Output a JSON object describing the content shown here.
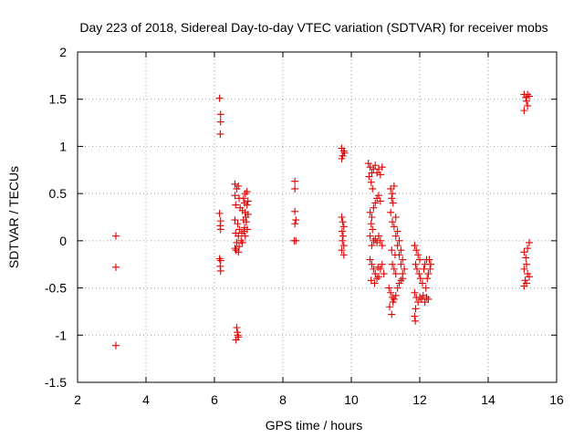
{
  "chart_data": {
    "type": "scatter",
    "title": "Day 223 of 2018, Sidereal Day-to-day VTEC variation (SDTVAR) for receiver mobs",
    "xlabel": "GPS time / hours",
    "ylabel": "SDTVAR / TECUs",
    "xlim": [
      2,
      16
    ],
    "ylim": [
      -1.5,
      2
    ],
    "xticks": [
      2,
      4,
      6,
      8,
      10,
      12,
      14,
      16
    ],
    "yticks": [
      -1.5,
      -1,
      -0.5,
      0,
      0.5,
      1,
      1.5,
      2
    ],
    "xtick_labels": [
      "2",
      "4",
      "6",
      "8",
      "10",
      "12",
      "14",
      "16"
    ],
    "ytick_labels": [
      "-1.5",
      "-1",
      "-0.5",
      "0",
      "0.5",
      "1",
      "1.5",
      "2"
    ],
    "grid": true,
    "marker": "+",
    "color": "#e00000",
    "series": [
      {
        "name": "SDTVAR",
        "points": [
          [
            3.12,
            0.05
          ],
          [
            3.12,
            -0.28
          ],
          [
            3.12,
            -1.11
          ],
          [
            6.15,
            1.51
          ],
          [
            6.18,
            1.34
          ],
          [
            6.18,
            1.26
          ],
          [
            6.17,
            1.13
          ],
          [
            6.15,
            0.29
          ],
          [
            6.18,
            0.21
          ],
          [
            6.17,
            0.16
          ],
          [
            6.18,
            0.12
          ],
          [
            6.15,
            -0.19
          ],
          [
            6.18,
            -0.21
          ],
          [
            6.17,
            -0.27
          ],
          [
            6.18,
            -0.32
          ],
          [
            6.6,
            0.6
          ],
          [
            6.65,
            0.55
          ],
          [
            6.7,
            0.58
          ],
          [
            6.6,
            0.48
          ],
          [
            6.72,
            0.45
          ],
          [
            6.62,
            0.38
          ],
          [
            6.75,
            0.35
          ],
          [
            6.6,
            0.22
          ],
          [
            6.68,
            0.18
          ],
          [
            6.73,
            0.12
          ],
          [
            6.62,
            0.08
          ],
          [
            6.7,
            0.05
          ],
          [
            6.65,
            -0.02
          ],
          [
            6.72,
            -0.06
          ],
          [
            6.63,
            -0.1
          ],
          [
            6.7,
            -0.12
          ],
          [
            6.6,
            -0.08
          ],
          [
            6.85,
            0.45
          ],
          [
            6.9,
            0.5
          ],
          [
            6.95,
            0.52
          ],
          [
            6.88,
            0.4
          ],
          [
            6.95,
            0.38
          ],
          [
            6.82,
            0.32
          ],
          [
            6.9,
            0.3
          ],
          [
            6.98,
            0.28
          ],
          [
            6.85,
            0.22
          ],
          [
            6.93,
            0.2
          ],
          [
            6.88,
            0.14
          ],
          [
            6.96,
            0.12
          ],
          [
            6.8,
            0.08
          ],
          [
            6.9,
            0.05
          ],
          [
            6.82,
            -0.02
          ],
          [
            6.78,
            0.0
          ],
          [
            6.86,
            0.1
          ],
          [
            6.92,
            0.25
          ],
          [
            6.98,
            0.42
          ],
          [
            6.65,
            -0.92
          ],
          [
            6.67,
            -0.97
          ],
          [
            6.68,
            -1.0
          ],
          [
            6.63,
            -1.05
          ],
          [
            6.7,
            -1.02
          ],
          [
            8.35,
            0.63
          ],
          [
            8.35,
            0.55
          ],
          [
            8.35,
            0.31
          ],
          [
            8.38,
            0.22
          ],
          [
            8.35,
            0.18
          ],
          [
            8.33,
            0.0
          ],
          [
            8.38,
            0.0
          ],
          [
            9.72,
            0.98
          ],
          [
            9.78,
            0.95
          ],
          [
            9.75,
            0.9
          ],
          [
            9.72,
            0.87
          ],
          [
            9.8,
            0.93
          ],
          [
            9.72,
            0.25
          ],
          [
            9.75,
            0.2
          ],
          [
            9.78,
            0.15
          ],
          [
            9.73,
            0.1
          ],
          [
            9.76,
            0.05
          ],
          [
            9.74,
            0.0
          ],
          [
            9.78,
            -0.05
          ],
          [
            9.72,
            -0.1
          ],
          [
            9.78,
            -0.15
          ],
          [
            10.5,
            0.82
          ],
          [
            10.55,
            0.78
          ],
          [
            10.6,
            0.72
          ],
          [
            10.52,
            0.68
          ],
          [
            10.58,
            0.62
          ],
          [
            10.65,
            0.76
          ],
          [
            10.7,
            0.8
          ],
          [
            10.75,
            0.72
          ],
          [
            10.8,
            0.76
          ],
          [
            10.85,
            0.7
          ],
          [
            10.9,
            0.78
          ],
          [
            10.62,
            0.55
          ],
          [
            10.55,
            0.3
          ],
          [
            10.6,
            0.25
          ],
          [
            10.65,
            0.35
          ],
          [
            10.7,
            0.4
          ],
          [
            10.75,
            0.45
          ],
          [
            10.8,
            0.48
          ],
          [
            10.85,
            0.42
          ],
          [
            10.58,
            0.18
          ],
          [
            10.62,
            0.12
          ],
          [
            10.55,
            0.05
          ],
          [
            10.65,
            0.0
          ],
          [
            10.6,
            -0.05
          ],
          [
            10.7,
            0.02
          ],
          [
            10.75,
            -0.02
          ],
          [
            10.8,
            0.05
          ],
          [
            10.85,
            0.0
          ],
          [
            10.9,
            -0.05
          ],
          [
            10.55,
            -0.2
          ],
          [
            10.6,
            -0.25
          ],
          [
            10.65,
            -0.3
          ],
          [
            10.7,
            -0.35
          ],
          [
            10.75,
            -0.4
          ],
          [
            10.8,
            -0.38
          ],
          [
            10.85,
            -0.3
          ],
          [
            10.9,
            -0.25
          ],
          [
            10.58,
            -0.42
          ],
          [
            10.68,
            -0.45
          ],
          [
            10.78,
            -0.28
          ],
          [
            10.95,
            -0.35
          ],
          [
            11.1,
            -0.5
          ],
          [
            11.15,
            -0.55
          ],
          [
            11.2,
            -0.6
          ],
          [
            11.25,
            -0.62
          ],
          [
            11.3,
            -0.58
          ],
          [
            11.12,
            -0.7
          ],
          [
            11.18,
            -0.78
          ],
          [
            11.22,
            -0.65
          ],
          [
            11.35,
            -0.5
          ],
          [
            11.4,
            -0.45
          ],
          [
            11.45,
            -0.42
          ],
          [
            11.5,
            -0.4
          ],
          [
            11.15,
            0.55
          ],
          [
            11.2,
            0.5
          ],
          [
            11.25,
            0.58
          ],
          [
            11.18,
            0.45
          ],
          [
            11.22,
            0.4
          ],
          [
            11.15,
            0.3
          ],
          [
            11.3,
            0.25
          ],
          [
            11.2,
            0.2
          ],
          [
            11.25,
            0.15
          ],
          [
            11.35,
            0.1
          ],
          [
            11.3,
            0.05
          ],
          [
            11.4,
            0.0
          ],
          [
            11.35,
            -0.05
          ],
          [
            11.45,
            -0.1
          ],
          [
            11.4,
            -0.15
          ],
          [
            11.5,
            -0.2
          ],
          [
            11.45,
            -0.25
          ],
          [
            11.55,
            -0.3
          ],
          [
            11.5,
            -0.35
          ],
          [
            11.25,
            -0.3
          ],
          [
            11.3,
            -0.35
          ],
          [
            11.2,
            -0.25
          ],
          [
            11.28,
            -0.15
          ],
          [
            11.18,
            -0.1
          ],
          [
            11.85,
            -0.05
          ],
          [
            11.9,
            -0.1
          ],
          [
            11.95,
            -0.15
          ],
          [
            12.0,
            -0.2
          ],
          [
            11.88,
            -0.25
          ],
          [
            11.92,
            -0.3
          ],
          [
            11.98,
            -0.35
          ],
          [
            12.02,
            -0.4
          ],
          [
            12.08,
            -0.45
          ],
          [
            12.12,
            -0.3
          ],
          [
            12.15,
            -0.25
          ],
          [
            12.2,
            -0.2
          ],
          [
            11.85,
            -0.55
          ],
          [
            11.9,
            -0.6
          ],
          [
            11.95,
            -0.65
          ],
          [
            12.0,
            -0.6
          ],
          [
            12.05,
            -0.62
          ],
          [
            12.1,
            -0.58
          ],
          [
            12.15,
            -0.65
          ],
          [
            12.2,
            -0.6
          ],
          [
            12.25,
            -0.62
          ],
          [
            11.88,
            -0.72
          ],
          [
            11.85,
            -0.8
          ],
          [
            11.87,
            -0.85
          ],
          [
            12.25,
            -0.35
          ],
          [
            12.3,
            -0.3
          ],
          [
            12.28,
            -0.2
          ],
          [
            12.32,
            -0.25
          ],
          [
            12.22,
            -0.4
          ],
          [
            12.18,
            -0.5
          ],
          [
            15.05,
            1.55
          ],
          [
            15.1,
            1.52
          ],
          [
            15.15,
            1.55
          ],
          [
            15.2,
            1.53
          ],
          [
            15.12,
            1.48
          ],
          [
            15.15,
            1.43
          ],
          [
            15.05,
            1.38
          ],
          [
            15.05,
            -0.12
          ],
          [
            15.1,
            -0.18
          ],
          [
            15.15,
            -0.08
          ],
          [
            15.2,
            -0.02
          ],
          [
            15.12,
            -0.25
          ],
          [
            15.05,
            -0.3
          ],
          [
            15.15,
            -0.35
          ],
          [
            15.2,
            -0.38
          ],
          [
            15.08,
            -0.42
          ],
          [
            15.12,
            -0.45
          ],
          [
            15.05,
            -0.48
          ]
        ]
      }
    ]
  }
}
